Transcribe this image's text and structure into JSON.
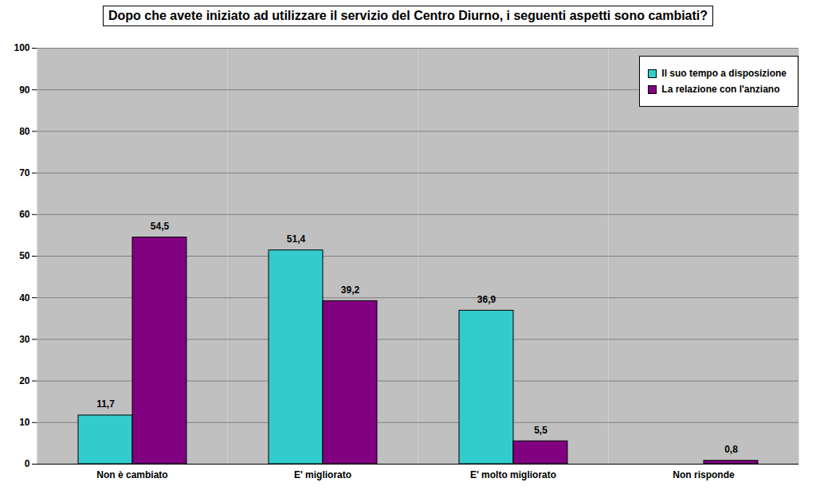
{
  "chart_data": {
    "type": "bar",
    "title": "Dopo che avete iniziato ad utilizzare il servizio del Centro Diurno, i seguenti aspetti sono cambiati?",
    "categories": [
      "Non è cambiato",
      "E' migliorato",
      "E' molto migliorato",
      "Non risponde"
    ],
    "series": [
      {
        "name": "Il suo tempo a disposizione",
        "color": "#33cccc",
        "values": [
          11.7,
          51.4,
          36.9,
          null
        ],
        "value_labels": [
          "11,7",
          "51,4",
          "36,9",
          null
        ]
      },
      {
        "name": "La relazione con l'anziano",
        "color": "#800080",
        "values": [
          54.5,
          39.2,
          5.5,
          0.8
        ],
        "value_labels": [
          "54,5",
          "39,2",
          "5,5",
          "0,8"
        ]
      }
    ],
    "ylim": [
      0,
      100
    ],
    "yticks": [
      0,
      10,
      20,
      30,
      40,
      50,
      60,
      70,
      80,
      90,
      100
    ],
    "grid": true,
    "legend": "top-right",
    "data_labels": true
  }
}
